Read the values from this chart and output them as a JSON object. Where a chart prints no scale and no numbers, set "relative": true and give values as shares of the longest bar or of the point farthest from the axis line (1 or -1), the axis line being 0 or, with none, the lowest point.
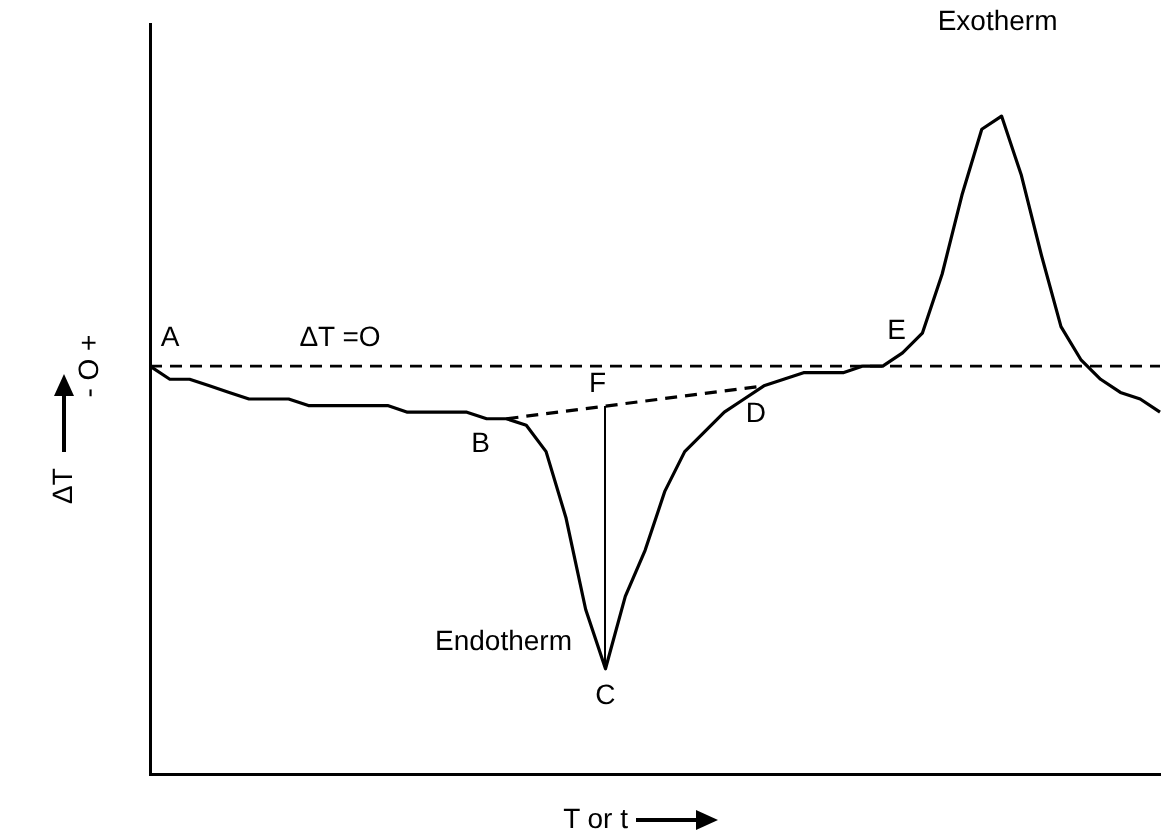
{
  "chart_data": {
    "type": "line",
    "relative": true,
    "xlabel": "T or t",
    "ylabel": "ΔT",
    "categories": [
      null,
      null,
      null,
      null,
      null,
      null,
      null,
      null,
      null,
      null,
      null,
      null,
      null,
      null,
      null,
      null,
      null,
      null,
      null,
      null,
      null,
      null,
      null,
      null,
      null,
      null,
      null,
      null,
      null,
      null,
      null,
      null,
      null,
      null,
      null,
      null,
      null,
      null,
      null,
      null,
      null,
      null,
      null,
      null,
      null,
      null,
      null,
      null,
      null,
      null,
      null,
      null
    ],
    "series": [
      {
        "color": "#000000",
        "line_style": "solid",
        "values": [
          0.62,
          0.6,
          0.6,
          0.59,
          0.58,
          0.57,
          0.57,
          0.57,
          0.56,
          0.56,
          0.56,
          0.56,
          0.56,
          0.55,
          0.55,
          0.55,
          0.55,
          0.54,
          0.54,
          0.53,
          0.49,
          0.39,
          0.25,
          0.16,
          0.27,
          0.34,
          0.43,
          0.49,
          0.52,
          0.55,
          0.57,
          0.59,
          0.6,
          0.61,
          0.61,
          0.61,
          0.62,
          0.62,
          0.64,
          0.67,
          0.76,
          0.88,
          0.98,
          1,
          0.91,
          0.79,
          0.68,
          0.63,
          0.6,
          0.58,
          0.57,
          0.55
        ]
      },
      {
        "color": "#000000",
        "line_style": "dashed",
        "values": [
          null,
          null,
          null,
          null,
          null,
          null,
          null,
          null,
          null,
          null,
          null,
          null,
          null,
          null,
          null,
          null,
          null,
          null,
          0.54,
          null,
          null,
          null,
          null,
          null,
          null,
          null,
          null,
          null,
          null,
          null,
          null,
          0.59,
          null,
          null,
          null,
          null,
          null,
          null,
          null,
          null,
          null,
          null,
          null,
          null,
          null,
          null,
          null,
          null,
          null,
          null,
          null,
          null
        ]
      }
    ],
    "ref_lines": [
      {
        "axis": "y",
        "value": 0.62,
        "label": "ΔT =O",
        "line_style": "dashed",
        "color": "#000000"
      }
    ],
    "annotations": [
      "A",
      "B",
      "C",
      "D",
      "E",
      "F",
      "Endotherm",
      "Exotherm",
      "- O +"
    ]
  }
}
